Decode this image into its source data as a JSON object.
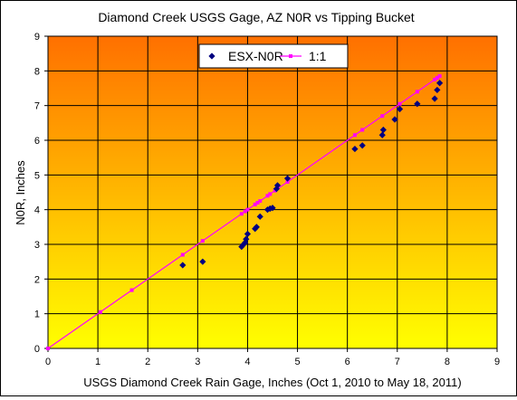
{
  "chart_data": {
    "type": "scatter",
    "title": "Diamond Creek USGS Gage, AZ N0R  vs Tipping Bucket",
    "xlabel": "USGS Diamond Creek Rain Gage, Inches (Oct 1, 2010 to May 18, 2011)",
    "ylabel": "N0R, Inches",
    "xlim": [
      0,
      9
    ],
    "ylim": [
      0,
      9
    ],
    "xticks": [
      "0",
      "1",
      "2",
      "3",
      "4",
      "5",
      "6",
      "7",
      "8",
      "9"
    ],
    "yticks": [
      "0",
      "1",
      "2",
      "3",
      "4",
      "5",
      "6",
      "7",
      "8",
      "9"
    ],
    "grid": true,
    "legend_position": "top-center",
    "background_gradient": [
      "#ff7000",
      "#ffff00"
    ],
    "series": [
      {
        "name": "ESX-N0R",
        "color": "#000080",
        "marker": "diamond",
        "line": false,
        "points": [
          [
            2.7,
            2.4
          ],
          [
            3.1,
            2.5
          ],
          [
            3.88,
            2.93
          ],
          [
            3.92,
            3.0
          ],
          [
            3.95,
            3.05
          ],
          [
            3.97,
            3.15
          ],
          [
            4.0,
            3.3
          ],
          [
            4.15,
            3.45
          ],
          [
            4.18,
            3.5
          ],
          [
            4.25,
            3.8
          ],
          [
            4.4,
            4.0
          ],
          [
            4.45,
            4.03
          ],
          [
            4.5,
            4.05
          ],
          [
            4.58,
            4.6
          ],
          [
            4.6,
            4.7
          ],
          [
            4.8,
            4.9
          ],
          [
            6.15,
            5.75
          ],
          [
            6.3,
            5.85
          ],
          [
            6.7,
            6.15
          ],
          [
            6.72,
            6.3
          ],
          [
            6.95,
            6.6
          ],
          [
            7.05,
            6.9
          ],
          [
            7.4,
            7.05
          ],
          [
            7.75,
            7.2
          ],
          [
            7.8,
            7.45
          ],
          [
            7.85,
            7.65
          ]
        ]
      },
      {
        "name": "1:1",
        "color": "#ff00ff",
        "marker": "square",
        "line": true,
        "points": [
          [
            0,
            0
          ],
          [
            1.05,
            1.05
          ],
          [
            1.68,
            1.68
          ],
          [
            2.7,
            2.7
          ],
          [
            3.1,
            3.1
          ],
          [
            3.88,
            3.88
          ],
          [
            3.95,
            3.95
          ],
          [
            4.0,
            4.0
          ],
          [
            4.15,
            4.15
          ],
          [
            4.2,
            4.2
          ],
          [
            4.25,
            4.25
          ],
          [
            4.4,
            4.4
          ],
          [
            4.45,
            4.45
          ],
          [
            4.55,
            4.55
          ],
          [
            4.8,
            4.8
          ],
          [
            6.15,
            6.15
          ],
          [
            6.3,
            6.3
          ],
          [
            6.7,
            6.7
          ],
          [
            7.05,
            7.05
          ],
          [
            7.4,
            7.4
          ],
          [
            7.75,
            7.75
          ],
          [
            7.8,
            7.8
          ],
          [
            7.85,
            7.85
          ]
        ]
      }
    ]
  }
}
